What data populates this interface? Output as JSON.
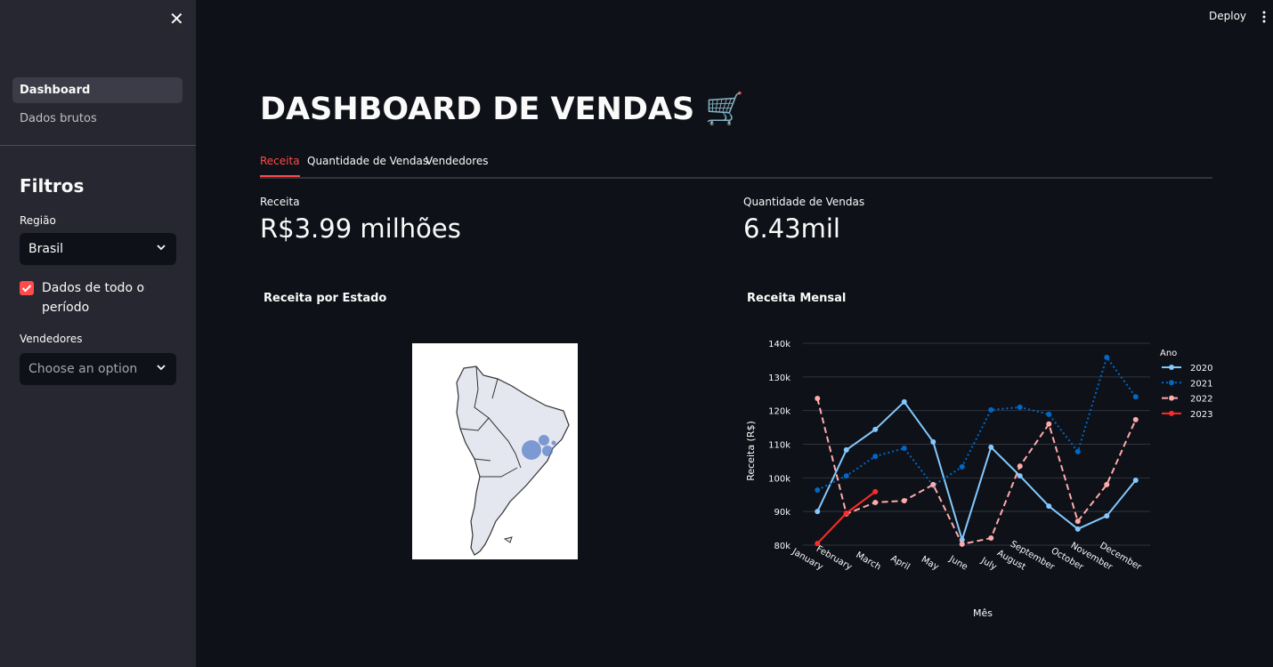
{
  "sidebar": {
    "nav": [
      "Dashboard",
      "Dados brutos"
    ],
    "filters_title": "Filtros",
    "region_label": "Região",
    "region_value": "Brasil",
    "checkbox_label": "Dados de todo o período",
    "sellers_label": "Vendedores",
    "sellers_placeholder": "Choose an option"
  },
  "header": {
    "deploy": "Deploy"
  },
  "main": {
    "title": "DASHBOARD DE VENDAS 🛒",
    "tabs": [
      "Receita",
      "Quantidade de Vendas",
      "Vendedores"
    ],
    "metrics": [
      {
        "label": "Receita",
        "value": "R$3.99 milhões"
      },
      {
        "label": "Quantidade de Vendas",
        "value": "6.43mil"
      }
    ],
    "map_title": "Receita por Estado"
  },
  "chart_data": {
    "type": "line",
    "title": "Receita Mensal",
    "x_label": "Mês",
    "y_label": "Receita (R$)",
    "legend_title": "Ano",
    "categories": [
      "January",
      "February",
      "March",
      "April",
      "May",
      "June",
      "July",
      "August",
      "September",
      "October",
      "November",
      "December"
    ],
    "series": [
      {
        "name": "2020",
        "color": "#83c9ff",
        "dash": "solid",
        "values": [
          90000,
          108300,
          114400,
          122600,
          110700,
          81600,
          109100,
          100600,
          91600,
          84800,
          88700,
          99300
        ]
      },
      {
        "name": "2021",
        "color": "#0068c9",
        "dash": "dot",
        "values": [
          96400,
          100600,
          106400,
          108800,
          97700,
          103300,
          120200,
          121000,
          118900,
          107800,
          135800,
          124100
        ]
      },
      {
        "name": "2022",
        "color": "#ffabab",
        "dash": "dash",
        "values": [
          123600,
          89300,
          92700,
          93200,
          98000,
          80300,
          82100,
          103500,
          116000,
          87100,
          98000,
          117300
        ]
      },
      {
        "name": "2023",
        "color": "#ff2b2b",
        "dash": "solid",
        "values": [
          80500,
          89500,
          95900,
          null,
          null,
          null,
          null,
          null,
          null,
          null,
          null,
          null
        ]
      }
    ],
    "ylim": [
      80000,
      140000
    ],
    "yticks": [
      {
        "value": 80000,
        "label": "80k"
      },
      {
        "value": 90000,
        "label": "90k"
      },
      {
        "value": 100000,
        "label": "100k"
      },
      {
        "value": 110000,
        "label": "110k"
      },
      {
        "value": 120000,
        "label": "120k"
      },
      {
        "value": 130000,
        "label": "130k"
      },
      {
        "value": 140000,
        "label": "140k"
      }
    ],
    "grid": true,
    "legend": "right"
  }
}
